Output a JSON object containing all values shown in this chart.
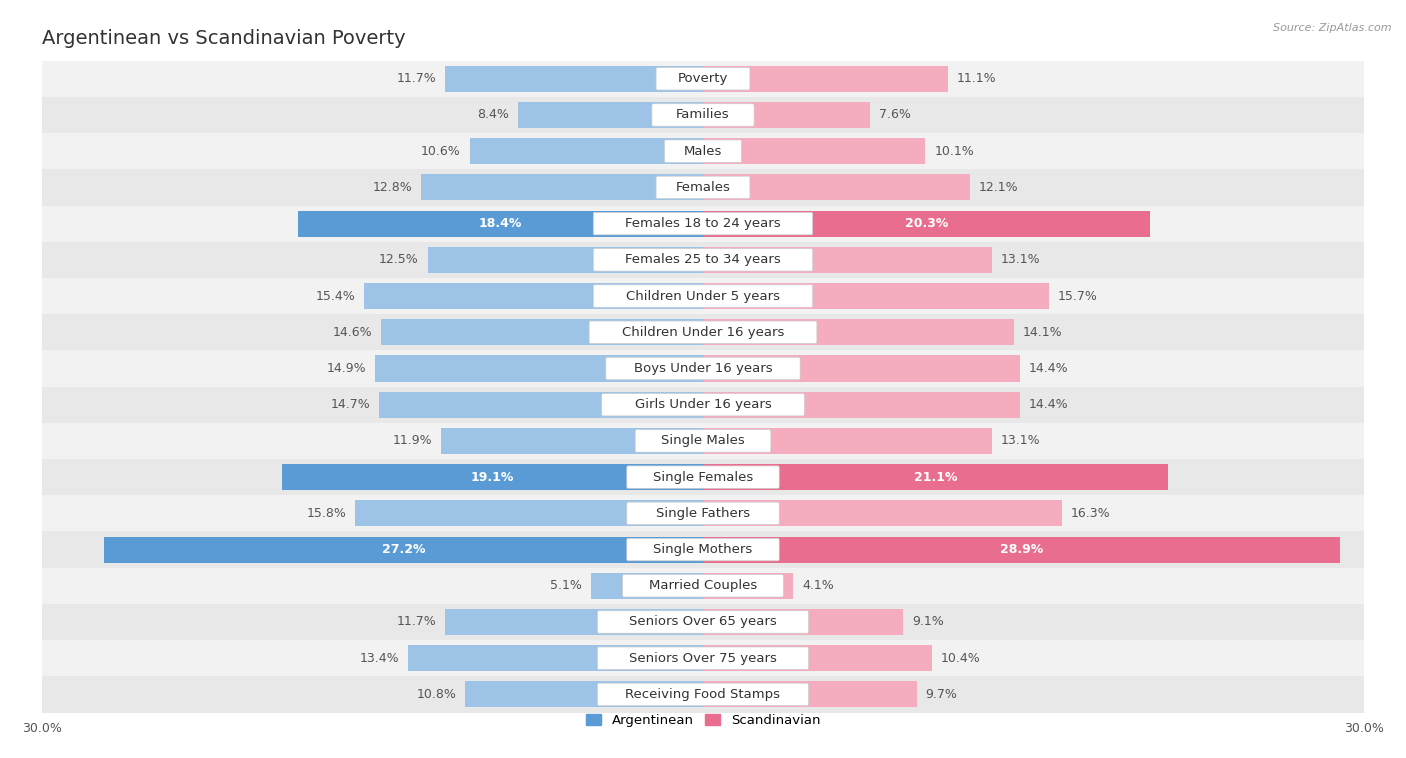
{
  "title": "Argentinean vs Scandinavian Poverty",
  "source": "Source: ZipAtlas.com",
  "categories": [
    "Poverty",
    "Families",
    "Males",
    "Females",
    "Females 18 to 24 years",
    "Females 25 to 34 years",
    "Children Under 5 years",
    "Children Under 16 years",
    "Boys Under 16 years",
    "Girls Under 16 years",
    "Single Males",
    "Single Females",
    "Single Fathers",
    "Single Mothers",
    "Married Couples",
    "Seniors Over 65 years",
    "Seniors Over 75 years",
    "Receiving Food Stamps"
  ],
  "argentinean": [
    11.7,
    8.4,
    10.6,
    12.8,
    18.4,
    12.5,
    15.4,
    14.6,
    14.9,
    14.7,
    11.9,
    19.1,
    15.8,
    27.2,
    5.1,
    11.7,
    13.4,
    10.8
  ],
  "scandinavian": [
    11.1,
    7.6,
    10.1,
    12.1,
    20.3,
    13.1,
    15.7,
    14.1,
    14.4,
    14.4,
    13.1,
    21.1,
    16.3,
    28.9,
    4.1,
    9.1,
    10.4,
    9.7
  ],
  "argentinean_color_normal": "#9dc3e6",
  "argentinean_color_highlight": "#5b9bd5",
  "scandinavian_color_normal": "#f4acbe",
  "scandinavian_color_highlight": "#e96d8e",
  "highlight_rows": [
    4,
    11,
    13
  ],
  "xlim": 30.0,
  "bar_height": 0.72,
  "row_even_color": "#f2f2f2",
  "row_odd_color": "#e8e8e8",
  "legend_argentinean": "Argentinean",
  "legend_scandinavian": "Scandinavian",
  "title_fontsize": 14,
  "label_fontsize": 9.5,
  "value_fontsize": 9.0,
  "axis_fontsize": 9.0
}
